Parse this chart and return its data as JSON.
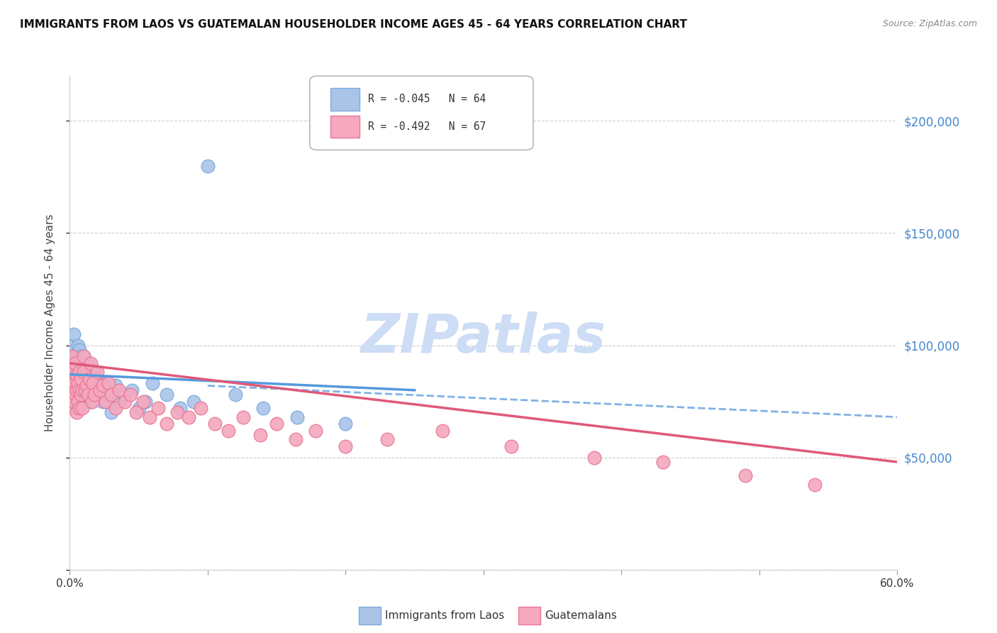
{
  "title": "IMMIGRANTS FROM LAOS VS GUATEMALAN HOUSEHOLDER INCOME AGES 45 - 64 YEARS CORRELATION CHART",
  "source": "Source: ZipAtlas.com",
  "ylabel": "Householder Income Ages 45 - 64 years",
  "xlim": [
    0.0,
    0.6
  ],
  "ylim": [
    0,
    220000
  ],
  "ytick_vals": [
    0,
    50000,
    100000,
    150000,
    200000
  ],
  "ytick_labels": [
    "",
    "$50,000",
    "$100,000",
    "$150,000",
    "$200,000"
  ],
  "legend_entry1": "R = -0.045   N = 64",
  "legend_entry2": "R = -0.492   N = 67",
  "legend_label1": "Immigrants from Laos",
  "legend_label2": "Guatemalans",
  "color_laos": "#aac4e8",
  "color_guatemalan": "#f5a8be",
  "color_laos_edge": "#7aabde",
  "color_guatemalan_edge": "#e87898",
  "trend_laos_color": "#5599dd",
  "trend_guatemalan_color": "#e05878",
  "watermark_color": "#ccddf5",
  "watermark": "ZIPatlas",
  "title_color": "#111111",
  "source_color": "#888888",
  "ytick_color": "#4488cc",
  "laos_x": [
    0.001,
    0.001,
    0.001,
    0.002,
    0.002,
    0.002,
    0.002,
    0.003,
    0.003,
    0.003,
    0.003,
    0.004,
    0.004,
    0.004,
    0.005,
    0.005,
    0.005,
    0.005,
    0.006,
    0.006,
    0.006,
    0.007,
    0.007,
    0.007,
    0.008,
    0.008,
    0.008,
    0.009,
    0.009,
    0.009,
    0.01,
    0.01,
    0.011,
    0.011,
    0.012,
    0.012,
    0.013,
    0.014,
    0.015,
    0.016,
    0.017,
    0.018,
    0.019,
    0.02,
    0.022,
    0.024,
    0.026,
    0.028,
    0.03,
    0.033,
    0.036,
    0.04,
    0.045,
    0.05,
    0.055,
    0.06,
    0.07,
    0.08,
    0.09,
    0.1,
    0.12,
    0.14,
    0.165,
    0.2
  ],
  "laos_y": [
    85000,
    78000,
    92000,
    95000,
    82000,
    100000,
    88000,
    75000,
    83000,
    91000,
    105000,
    80000,
    87000,
    95000,
    72000,
    88000,
    95000,
    82000,
    78000,
    90000,
    100000,
    85000,
    92000,
    98000,
    80000,
    87000,
    95000,
    75000,
    83000,
    90000,
    88000,
    95000,
    82000,
    90000,
    78000,
    85000,
    92000,
    80000,
    75000,
    83000,
    78000,
    88000,
    82000,
    85000,
    80000,
    75000,
    83000,
    78000,
    70000,
    82000,
    75000,
    78000,
    80000,
    72000,
    75000,
    83000,
    78000,
    72000,
    75000,
    180000,
    78000,
    72000,
    68000,
    65000
  ],
  "guatemalan_x": [
    0.001,
    0.001,
    0.002,
    0.002,
    0.002,
    0.003,
    0.003,
    0.003,
    0.003,
    0.004,
    0.004,
    0.004,
    0.005,
    0.005,
    0.005,
    0.006,
    0.006,
    0.007,
    0.007,
    0.007,
    0.008,
    0.008,
    0.009,
    0.009,
    0.01,
    0.01,
    0.011,
    0.012,
    0.013,
    0.014,
    0.015,
    0.016,
    0.017,
    0.018,
    0.02,
    0.022,
    0.024,
    0.026,
    0.028,
    0.03,
    0.033,
    0.036,
    0.04,
    0.044,
    0.048,
    0.053,
    0.058,
    0.064,
    0.07,
    0.078,
    0.086,
    0.095,
    0.105,
    0.115,
    0.126,
    0.138,
    0.15,
    0.164,
    0.178,
    0.2,
    0.23,
    0.27,
    0.32,
    0.38,
    0.43,
    0.49,
    0.54
  ],
  "guatemalan_y": [
    82000,
    90000,
    78000,
    85000,
    95000,
    72000,
    80000,
    88000,
    75000,
    83000,
    92000,
    78000,
    70000,
    80000,
    87000,
    75000,
    83000,
    72000,
    80000,
    88000,
    78000,
    85000,
    72000,
    80000,
    88000,
    95000,
    80000,
    82000,
    78000,
    85000,
    92000,
    75000,
    83000,
    78000,
    88000,
    80000,
    82000,
    75000,
    83000,
    78000,
    72000,
    80000,
    75000,
    78000,
    70000,
    75000,
    68000,
    72000,
    65000,
    70000,
    68000,
    72000,
    65000,
    62000,
    68000,
    60000,
    65000,
    58000,
    62000,
    55000,
    58000,
    62000,
    55000,
    50000,
    48000,
    42000,
    38000
  ]
}
